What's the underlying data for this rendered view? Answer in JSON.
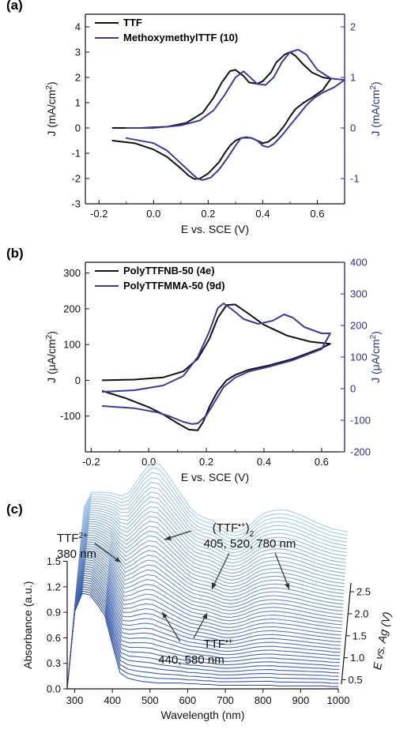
{
  "chart_data": [
    {
      "panel_label": "(a)",
      "type": "line",
      "xlabel": "E vs. SCE (V)",
      "ylabel": "J (mA/cm",
      "ylabel_sup": "2",
      "ylabel_end": ")",
      "y2label": "J (mA/cm",
      "y2label_sup": "2",
      "y2label_end": ")",
      "xlim": [
        -0.25,
        0.7
      ],
      "ylim": [
        -3,
        4.5
      ],
      "y2lim": [
        -1.5,
        2.25
      ],
      "xticks": [
        "-0.2",
        "0.0",
        "0.2",
        "0.4",
        "0.6"
      ],
      "xtick_values": [
        -0.2,
        0.0,
        0.2,
        0.4,
        0.6
      ],
      "yticks": [
        "-3",
        "-2",
        "-1",
        "0",
        "1",
        "2",
        "3",
        "4"
      ],
      "ytick_values": [
        -3,
        -2,
        -1,
        0,
        1,
        2,
        3,
        4
      ],
      "y2ticks": [
        "-1",
        "0",
        "1",
        "2"
      ],
      "y2tick_values": [
        -1,
        0,
        1,
        2
      ],
      "legend_position": "top-left",
      "colors": {
        "series1": "#111111",
        "series2": "#3b3b9c",
        "right_axis": "#2e2e8c"
      },
      "series": [
        {
          "name": "TTF",
          "legend_bold": "",
          "axis": "left",
          "x": [
            -0.15,
            -0.05,
            0.05,
            0.12,
            0.18,
            0.22,
            0.25,
            0.28,
            0.3,
            0.33,
            0.35,
            0.38,
            0.4,
            0.43,
            0.45,
            0.48,
            0.5,
            0.52,
            0.55,
            0.58,
            0.62,
            0.65,
            0.62,
            0.58,
            0.55,
            0.52,
            0.5,
            0.48,
            0.45,
            0.42,
            0.4,
            0.38,
            0.36,
            0.34,
            0.32,
            0.3,
            0.28,
            0.26,
            0.24,
            0.2,
            0.17,
            0.15,
            0.13,
            0.1,
            0.05,
            0.0,
            -0.07,
            -0.15
          ],
          "y": [
            0.0,
            0.0,
            0.05,
            0.2,
            0.6,
            1.2,
            1.8,
            2.25,
            2.3,
            2.05,
            1.8,
            1.75,
            1.85,
            2.2,
            2.6,
            2.9,
            3.0,
            2.85,
            2.5,
            2.2,
            2.0,
            1.95,
            1.5,
            1.2,
            1.0,
            0.75,
            0.45,
            0.1,
            -0.3,
            -0.55,
            -0.6,
            -0.5,
            -0.4,
            -0.38,
            -0.4,
            -0.5,
            -0.7,
            -1.0,
            -1.35,
            -1.8,
            -2.0,
            -2.02,
            -1.9,
            -1.6,
            -1.15,
            -0.85,
            -0.6,
            -0.5
          ]
        },
        {
          "name": "Methoxymethyl",
          "legend_bold": "TTF (10)",
          "axis": "right",
          "x": [
            -0.1,
            0.0,
            0.1,
            0.17,
            0.22,
            0.26,
            0.3,
            0.33,
            0.35,
            0.38,
            0.41,
            0.44,
            0.47,
            0.5,
            0.53,
            0.56,
            0.6,
            0.65,
            0.7,
            0.66,
            0.62,
            0.59,
            0.56,
            0.53,
            0.5,
            0.47,
            0.44,
            0.42,
            0.4,
            0.38,
            0.36,
            0.34,
            0.32,
            0.3,
            0.27,
            0.24,
            0.21,
            0.18,
            0.16,
            0.13,
            0.1,
            0.05,
            0.0,
            -0.1
          ],
          "y": [
            0.0,
            0.0,
            0.05,
            0.15,
            0.35,
            0.65,
            1.0,
            1.12,
            1.02,
            0.87,
            0.85,
            1.0,
            1.3,
            1.5,
            1.55,
            1.45,
            1.15,
            0.98,
            0.95,
            0.8,
            0.7,
            0.6,
            0.45,
            0.25,
            0.05,
            -0.15,
            -0.32,
            -0.38,
            -0.35,
            -0.25,
            -0.2,
            -0.18,
            -0.2,
            -0.35,
            -0.6,
            -0.82,
            -0.98,
            -1.03,
            -1.0,
            -0.85,
            -0.7,
            -0.45,
            -0.3,
            -0.2
          ]
        }
      ]
    },
    {
      "panel_label": "(b)",
      "type": "line",
      "xlabel": "E vs. SCE (V)",
      "ylabel": "J (μA/cm",
      "ylabel_sup": "2",
      "ylabel_end": ")",
      "y2label": "J (μA/cm",
      "y2label_sup": "2",
      "y2label_end": ")",
      "xlim": [
        -0.22,
        0.68
      ],
      "ylim": [
        -200,
        330
      ],
      "y2lim": [
        -200,
        400
      ],
      "xticks": [
        "-0.2",
        "0.0",
        "0.2",
        "0.4",
        "0.6"
      ],
      "xtick_values": [
        -0.2,
        0.0,
        0.2,
        0.4,
        0.6
      ],
      "yticks": [
        "-100",
        "0",
        "100",
        "200",
        "300"
      ],
      "ytick_values": [
        -100,
        0,
        100,
        200,
        300
      ],
      "y2ticks": [
        "-200",
        "-100",
        "0",
        "100",
        "200",
        "300",
        "400"
      ],
      "y2tick_values": [
        -200,
        -100,
        0,
        100,
        200,
        300,
        400
      ],
      "legend_position": "top-left",
      "colors": {
        "series1": "#111111",
        "series2": "#3b3b9c",
        "right_axis": "#2e2e8c"
      },
      "series": [
        {
          "name": "PolyTTFNB-50 (4e)",
          "legend_bold": "",
          "axis": "left",
          "x": [
            -0.16,
            -0.05,
            0.05,
            0.12,
            0.17,
            0.21,
            0.24,
            0.27,
            0.3,
            0.34,
            0.4,
            0.48,
            0.56,
            0.63,
            0.6,
            0.5,
            0.42,
            0.35,
            0.3,
            0.27,
            0.24,
            0.21,
            0.19,
            0.17,
            0.14,
            0.1,
            0.05,
            0.0,
            -0.08,
            -0.16
          ],
          "y": [
            0,
            2,
            8,
            25,
            60,
            115,
            175,
            210,
            212,
            190,
            155,
            125,
            108,
            102,
            90,
            60,
            42,
            30,
            15,
            0,
            -30,
            -75,
            -115,
            -140,
            -138,
            -120,
            -95,
            -75,
            -50,
            -30
          ]
        },
        {
          "name": "PolyTTFMMA-50 (9d)",
          "legend_bold": "",
          "axis": "right",
          "x": [
            -0.16,
            -0.05,
            0.05,
            0.12,
            0.17,
            0.21,
            0.24,
            0.26,
            0.29,
            0.33,
            0.38,
            0.43,
            0.47,
            0.5,
            0.54,
            0.6,
            0.63,
            0.6,
            0.5,
            0.42,
            0.35,
            0.3,
            0.26,
            0.23,
            0.2,
            0.17,
            0.15,
            0.12,
            0.08,
            0.03,
            -0.05,
            -0.16
          ],
          "y": [
            -10,
            -5,
            10,
            40,
            100,
            180,
            255,
            270,
            250,
            220,
            205,
            215,
            235,
            225,
            195,
            175,
            175,
            125,
            90,
            70,
            55,
            35,
            5,
            -40,
            -85,
            -110,
            -112,
            -105,
            -90,
            -75,
            -62,
            -55
          ]
        }
      ]
    },
    {
      "panel_label": "(c)",
      "type": "area",
      "xlabel": "Wavelength (nm)",
      "ylabel": "Absorbance (a.u.)",
      "zlabel": "E vs. Ag (V)",
      "xlim": [
        280,
        1000
      ],
      "ylim": [
        0,
        1.5
      ],
      "zlim": [
        0.4,
        2.7
      ],
      "xticks": [
        "300",
        "400",
        "500",
        "600",
        "700",
        "800",
        "900",
        "1000"
      ],
      "xtick_values": [
        300,
        400,
        500,
        600,
        700,
        800,
        900,
        1000
      ],
      "yticks": [
        "0.0",
        "0.3",
        "0.6",
        "0.9",
        "1.2",
        "1.5"
      ],
      "ytick_values": [
        0.0,
        0.3,
        0.6,
        0.9,
        1.2,
        1.5
      ],
      "zticks": [
        "0.5",
        "1.0",
        "1.5",
        "2.0",
        "2.5"
      ],
      "ztick_values": [
        0.5,
        1.0,
        1.5,
        2.0,
        2.5
      ],
      "colors": {
        "low": "#3556a8",
        "high": "#a9cdea"
      },
      "wavelengths": [
        280,
        300,
        320,
        340,
        360,
        380,
        400,
        420,
        440,
        460,
        480,
        500,
        520,
        540,
        560,
        580,
        600,
        620,
        640,
        660,
        680,
        700,
        720,
        740,
        760,
        780,
        800,
        820,
        840,
        860,
        880,
        900,
        920,
        940,
        960,
        980,
        1000
      ],
      "spectrum_low": [
        0.0,
        1.05,
        1.3,
        1.28,
        1.15,
        1.0,
        0.6,
        0.22,
        0.15,
        0.12,
        0.1,
        0.09,
        0.08,
        0.08,
        0.08,
        0.08,
        0.07,
        0.07,
        0.06,
        0.06,
        0.05,
        0.05,
        0.05,
        0.05,
        0.05,
        0.05,
        0.05,
        0.05,
        0.04,
        0.04,
        0.04,
        0.04,
        0.04,
        0.04,
        0.04,
        0.03,
        0.03
      ],
      "spectrum_high": [
        0.0,
        1.1,
        1.3,
        1.3,
        1.3,
        1.28,
        1.25,
        1.3,
        1.45,
        1.6,
        1.7,
        1.68,
        1.55,
        1.4,
        1.25,
        1.1,
        1.0,
        0.95,
        0.92,
        0.85,
        0.78,
        0.75,
        0.78,
        0.85,
        0.95,
        1.02,
        1.05,
        1.06,
        1.05,
        1.02,
        0.98,
        0.93,
        0.88,
        0.84,
        0.8,
        0.78,
        0.76
      ],
      "annotations": [
        {
          "text": "TTF",
          "sup": "2+",
          "line2": "380 nm"
        },
        {
          "text": "(TTF",
          "sup": "•+",
          "end": ")",
          "sub": "2",
          "line2": "405, 520, 780 nm"
        },
        {
          "text": "TTF",
          "sup": "•+",
          "line2": "440, 580 nm"
        }
      ]
    }
  ]
}
